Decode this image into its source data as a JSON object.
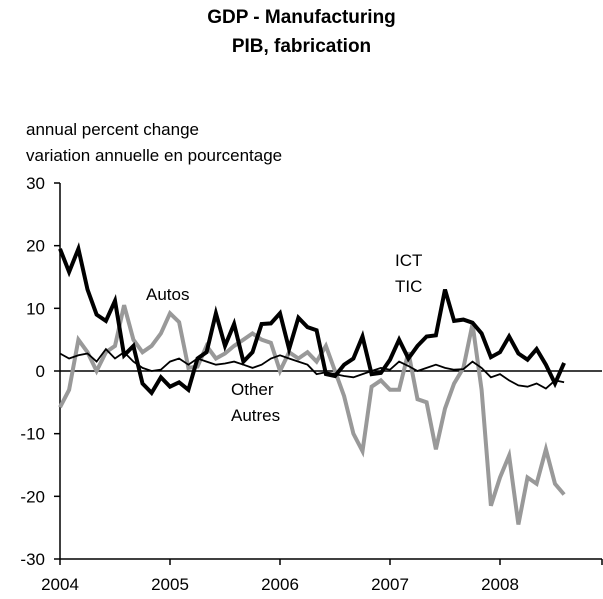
{
  "chart_data": {
    "type": "line",
    "title": "GDP - Manufacturing",
    "subtitle": "PIB, fabrication",
    "ylabel": [
      "annual percent change",
      "variation annuelle en pourcentage"
    ],
    "ylim": [
      -30,
      30
    ],
    "yticks": [
      "30",
      "20",
      "10",
      "0",
      "-10",
      "-20",
      "-30"
    ],
    "xlim": [
      2004,
      2008.83
    ],
    "xticks": [
      "2004",
      "2005",
      "2006",
      "2007",
      "2008"
    ],
    "series_labels": [
      {
        "series": "ICT",
        "lines": [
          "ICT",
          "TIC"
        ]
      },
      {
        "series": "Autos",
        "lines": [
          "Autos"
        ]
      },
      {
        "series": "Other",
        "lines": [
          "Other",
          "Autres"
        ]
      }
    ],
    "series": [
      {
        "name": "ICT",
        "color": "#000000",
        "style": "thick",
        "x": [
          2004.0,
          2004.083,
          2004.167,
          2004.25,
          2004.333,
          2004.417,
          2004.5,
          2004.583,
          2004.667,
          2004.75,
          2004.833,
          2004.917,
          2005.0,
          2005.083,
          2005.167,
          2005.25,
          2005.333,
          2005.417,
          2005.5,
          2005.583,
          2005.667,
          2005.75,
          2005.833,
          2005.917,
          2006.0,
          2006.083,
          2006.167,
          2006.25,
          2006.333,
          2006.417,
          2006.5,
          2006.583,
          2006.667,
          2006.75,
          2006.833,
          2006.917,
          2007.0,
          2007.083,
          2007.167,
          2007.25,
          2007.333,
          2007.417,
          2007.5,
          2007.583,
          2007.667,
          2007.75,
          2007.833,
          2007.917,
          2008.0,
          2008.083,
          2008.167,
          2008.25,
          2008.333,
          2008.417,
          2008.5,
          2008.583
        ],
        "values": [
          19.5,
          15.8,
          19.5,
          13.0,
          9.0,
          8.0,
          11.2,
          2.5,
          4.0,
          -2.0,
          -3.5,
          -1.0,
          -2.5,
          -1.8,
          -3.0,
          2.0,
          3.0,
          9.2,
          4.0,
          7.5,
          1.5,
          3.0,
          7.5,
          7.6,
          9.2,
          3.5,
          8.5,
          7.0,
          6.5,
          -0.5,
          -0.8,
          1.0,
          2.0,
          5.5,
          -0.5,
          -0.3,
          1.8,
          5.0,
          2.0,
          4.0,
          5.5,
          5.7,
          13.0,
          8.0,
          8.2,
          7.7,
          6.0,
          2.2,
          3.0,
          5.5,
          2.8,
          1.8,
          3.5,
          1.0,
          -2.0,
          1.3
        ]
      },
      {
        "name": "Autos",
        "color": "#999999",
        "style": "thick",
        "x": [
          2004.0,
          2004.083,
          2004.167,
          2004.25,
          2004.333,
          2004.417,
          2004.5,
          2004.583,
          2004.667,
          2004.75,
          2004.833,
          2004.917,
          2005.0,
          2005.083,
          2005.167,
          2005.25,
          2005.333,
          2005.417,
          2005.5,
          2005.583,
          2005.667,
          2005.75,
          2005.833,
          2005.917,
          2006.0,
          2006.083,
          2006.167,
          2006.25,
          2006.333,
          2006.417,
          2006.5,
          2006.583,
          2006.667,
          2006.75,
          2006.833,
          2006.917,
          2007.0,
          2007.083,
          2007.167,
          2007.25,
          2007.333,
          2007.417,
          2007.5,
          2007.583,
          2007.667,
          2007.75,
          2007.833,
          2007.917,
          2008.0,
          2008.083,
          2008.167,
          2008.25,
          2008.333,
          2008.417,
          2008.5,
          2008.583
        ],
        "values": [
          -5.8,
          -3.0,
          5.0,
          3.0,
          0.0,
          3.0,
          4.0,
          10.5,
          5.0,
          3.0,
          4.0,
          6.0,
          9.2,
          7.8,
          0.5,
          0.7,
          4.0,
          2.0,
          2.8,
          4.0,
          5.0,
          6.0,
          5.0,
          4.5,
          0.0,
          3.0,
          2.0,
          3.0,
          1.5,
          4.0,
          0.0,
          -4.0,
          -10.0,
          -12.8,
          -2.5,
          -1.5,
          -3.0,
          -3.0,
          3.0,
          -4.5,
          -5.0,
          -12.5,
          -6.0,
          -2.0,
          0.5,
          7.5,
          -3.0,
          -21.5,
          -17.0,
          -13.5,
          -24.5,
          -17.0,
          -18.0,
          -12.5,
          -18.0,
          -19.7
        ]
      },
      {
        "name": "Other",
        "color": "#000000",
        "style": "thin",
        "x": [
          2004.0,
          2004.083,
          2004.167,
          2004.25,
          2004.333,
          2004.417,
          2004.5,
          2004.583,
          2004.667,
          2004.75,
          2004.833,
          2004.917,
          2005.0,
          2005.083,
          2005.167,
          2005.25,
          2005.333,
          2005.417,
          2005.5,
          2005.583,
          2005.667,
          2005.75,
          2005.833,
          2005.917,
          2006.0,
          2006.083,
          2006.167,
          2006.25,
          2006.333,
          2006.417,
          2006.5,
          2006.583,
          2006.667,
          2006.75,
          2006.833,
          2006.917,
          2007.0,
          2007.083,
          2007.167,
          2007.25,
          2007.333,
          2007.417,
          2007.5,
          2007.583,
          2007.667,
          2007.75,
          2007.833,
          2007.917,
          2008.0,
          2008.083,
          2008.167,
          2008.25,
          2008.333,
          2008.417,
          2008.5,
          2008.583
        ],
        "values": [
          2.8,
          2.0,
          2.5,
          2.8,
          1.5,
          3.5,
          2.0,
          3.0,
          1.5,
          0.5,
          0.0,
          0.2,
          1.5,
          2.0,
          1.0,
          2.0,
          1.5,
          1.0,
          1.2,
          1.5,
          1.0,
          0.5,
          1.0,
          2.0,
          2.5,
          2.0,
          1.5,
          1.0,
          -0.5,
          -0.2,
          -0.5,
          -0.8,
          -1.0,
          -0.5,
          0.0,
          0.5,
          0.2,
          1.5,
          0.8,
          0.0,
          0.5,
          1.0,
          0.5,
          0.2,
          0.3,
          1.5,
          0.5,
          -1.0,
          -0.5,
          -1.5,
          -2.3,
          -2.5,
          -2.0,
          -2.8,
          -1.5,
          -1.8
        ]
      }
    ],
    "grid": false,
    "legend": "inline labels"
  }
}
